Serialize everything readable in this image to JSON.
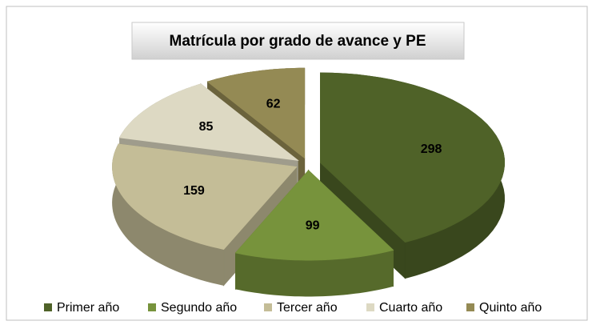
{
  "chart_data": {
    "type": "pie",
    "title": "Matrícula por grado de avance y PE",
    "categories": [
      "Primer año",
      "Segundo año",
      "Tercer año",
      "Cuarto año",
      "Quinto año"
    ],
    "values": [
      298,
      99,
      159,
      85,
      62
    ],
    "colors": [
      "#4f6228",
      "#77933c",
      "#c4bd97",
      "#ddd9c3",
      "#948a54"
    ],
    "legend": "bottom"
  }
}
